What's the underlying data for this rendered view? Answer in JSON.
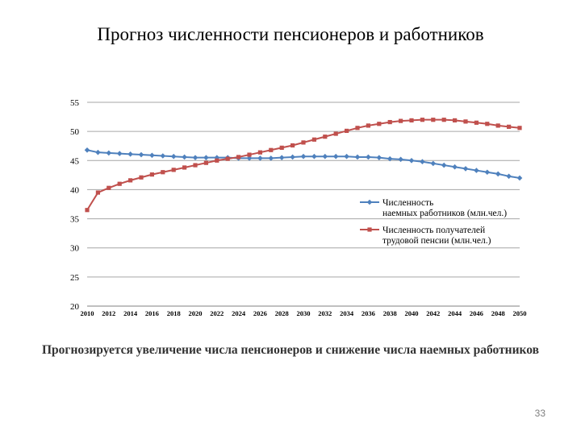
{
  "slide": {
    "title": "Прогноз численности пенсионеров и работников",
    "caption": "Прогнозируется увеличение числа пенсионеров и снижение числа наемных работников",
    "page_number": "33"
  },
  "chart_data": {
    "type": "line",
    "title": "",
    "xlabel": "",
    "ylabel": "",
    "ylim": [
      20,
      55
    ],
    "yticks": [
      20,
      25,
      30,
      35,
      40,
      45,
      50,
      55
    ],
    "x": [
      2010,
      2011,
      2012,
      2013,
      2014,
      2015,
      2016,
      2017,
      2018,
      2019,
      2020,
      2021,
      2022,
      2023,
      2024,
      2025,
      2026,
      2027,
      2028,
      2029,
      2030,
      2031,
      2032,
      2033,
      2034,
      2035,
      2036,
      2037,
      2038,
      2039,
      2040,
      2041,
      2042,
      2043,
      2044,
      2045,
      2046,
      2047,
      2048,
      2049,
      2050
    ],
    "xtick_labels": [
      "2010",
      "2012",
      "2014",
      "2016",
      "2018",
      "2020",
      "2022",
      "2024",
      "2026",
      "2028",
      "2030",
      "2032",
      "2034",
      "2036",
      "2038",
      "2040",
      "2042",
      "2044",
      "2046",
      "2048",
      "2050"
    ],
    "grid": "horizontal",
    "legend_position": "right",
    "series": [
      {
        "name": "Численность наемных работников (млн.чел.)",
        "color": "#4f81bd",
        "marker": "diamond",
        "values": [
          46.8,
          46.4,
          46.3,
          46.2,
          46.1,
          46.0,
          45.9,
          45.8,
          45.7,
          45.6,
          45.5,
          45.5,
          45.5,
          45.5,
          45.4,
          45.4,
          45.4,
          45.4,
          45.5,
          45.6,
          45.7,
          45.7,
          45.7,
          45.7,
          45.7,
          45.6,
          45.6,
          45.5,
          45.3,
          45.2,
          45.0,
          44.8,
          44.5,
          44.2,
          43.9,
          43.6,
          43.3,
          43.0,
          42.7,
          42.3,
          42.0
        ]
      },
      {
        "name": "Численность получателей трудовой пенсии (млн.чел.)",
        "color": "#c0504d",
        "marker": "square",
        "values": [
          36.5,
          39.5,
          40.3,
          41.0,
          41.6,
          42.1,
          42.6,
          43.0,
          43.4,
          43.8,
          44.2,
          44.6,
          45.0,
          45.3,
          45.6,
          46.0,
          46.4,
          46.8,
          47.2,
          47.6,
          48.1,
          48.6,
          49.1,
          49.6,
          50.1,
          50.6,
          51.0,
          51.3,
          51.6,
          51.8,
          51.9,
          52.0,
          52.0,
          52.0,
          51.9,
          51.7,
          51.5,
          51.3,
          51.0,
          50.8,
          50.6
        ]
      }
    ]
  }
}
